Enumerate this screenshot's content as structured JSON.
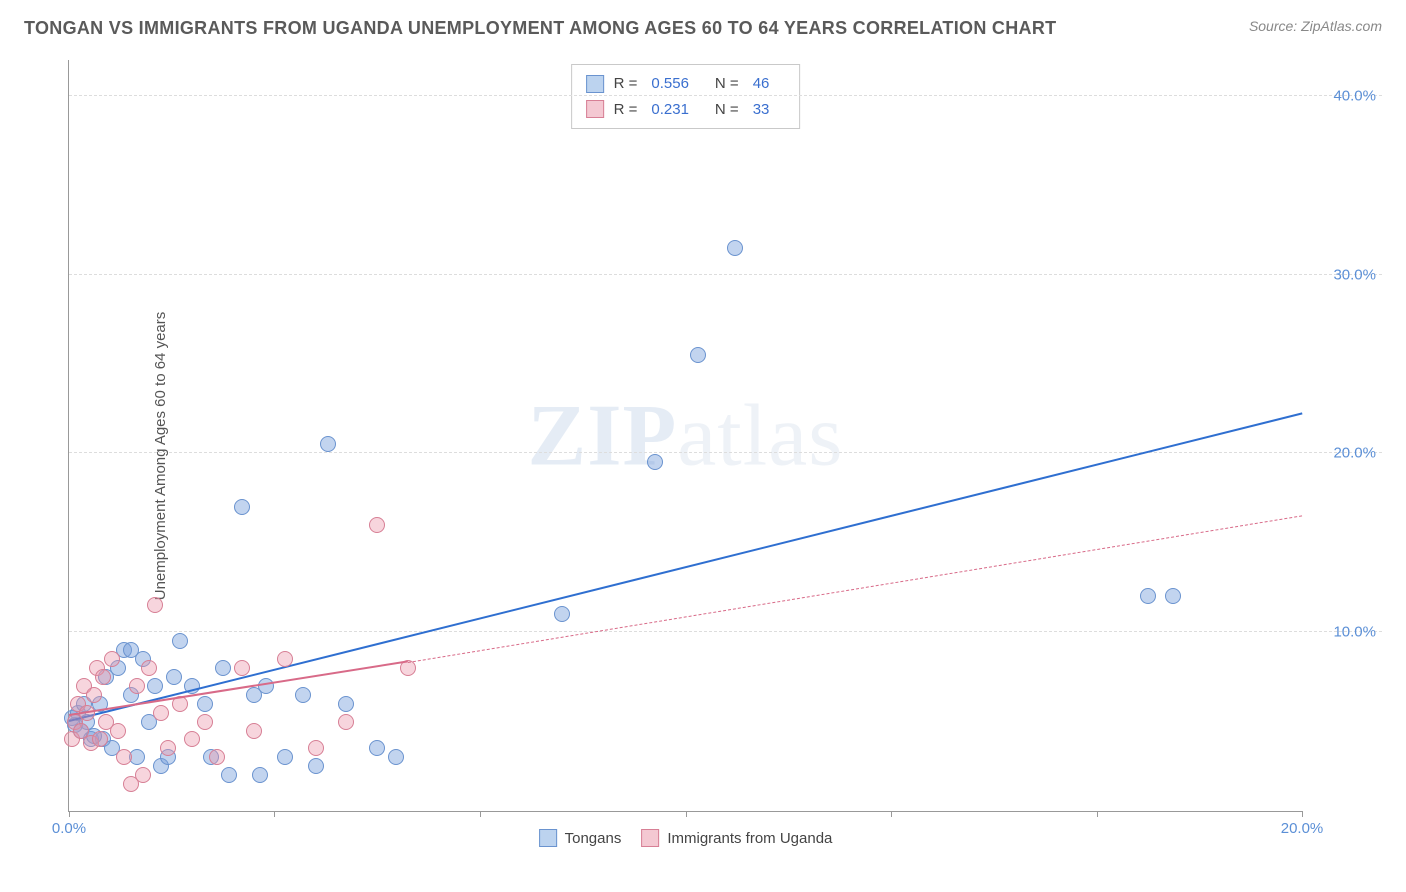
{
  "header": {
    "title": "TONGAN VS IMMIGRANTS FROM UGANDA UNEMPLOYMENT AMONG AGES 60 TO 64 YEARS CORRELATION CHART",
    "source": "Source: ZipAtlas.com"
  },
  "watermark": {
    "bold": "ZIP",
    "rest": "atlas"
  },
  "chart": {
    "type": "scatter",
    "ylabel": "Unemployment Among Ages 60 to 64 years",
    "xlim": [
      0,
      20
    ],
    "ylim": [
      0,
      42
    ],
    "xtick_positions": [
      0,
      3.33,
      6.67,
      10,
      13.33,
      16.67,
      20
    ],
    "xtick_labels": [
      "0.0%",
      "",
      "",
      "",
      "",
      "",
      "20.0%"
    ],
    "ytick_positions": [
      10,
      20,
      30,
      40
    ],
    "ytick_labels": [
      "10.0%",
      "20.0%",
      "30.0%",
      "40.0%"
    ],
    "grid_color": "#dddddd",
    "axis_color": "#999999",
    "background_color": "#ffffff",
    "marker_radius": 8,
    "marker_border_width": 1.2,
    "series": [
      {
        "name": "Tongans",
        "fill_color": "rgba(120,160,220,0.45)",
        "stroke_color": "#6a93cf",
        "swatch_fill": "#bcd3ef",
        "swatch_border": "#6a93cf",
        "R": "0.556",
        "N": "46",
        "trend": {
          "x1": 0,
          "y1": 5.0,
          "x2": 20,
          "y2": 22.2,
          "color": "#2f6fd0",
          "width": 2.5,
          "dash": "solid"
        },
        "points": [
          [
            0.05,
            5.2
          ],
          [
            0.1,
            4.8
          ],
          [
            0.15,
            5.5
          ],
          [
            0.2,
            4.5
          ],
          [
            0.25,
            6.0
          ],
          [
            0.3,
            5.0
          ],
          [
            0.35,
            4.0
          ],
          [
            0.5,
            6.0
          ],
          [
            0.55,
            4.0
          ],
          [
            0.6,
            7.5
          ],
          [
            0.7,
            3.5
          ],
          [
            0.8,
            8.0
          ],
          [
            0.9,
            9.0
          ],
          [
            1.0,
            6.5
          ],
          [
            1.1,
            3.0
          ],
          [
            1.2,
            8.5
          ],
          [
            1.3,
            5.0
          ],
          [
            1.4,
            7.0
          ],
          [
            1.5,
            2.5
          ],
          [
            1.6,
            3.0
          ],
          [
            1.7,
            7.5
          ],
          [
            1.8,
            9.5
          ],
          [
            2.0,
            7.0
          ],
          [
            2.2,
            6.0
          ],
          [
            2.3,
            3.0
          ],
          [
            2.5,
            8.0
          ],
          [
            2.6,
            2.0
          ],
          [
            2.8,
            17.0
          ],
          [
            3.0,
            6.5
          ],
          [
            3.1,
            2.0
          ],
          [
            3.2,
            7.0
          ],
          [
            3.5,
            3.0
          ],
          [
            3.8,
            6.5
          ],
          [
            4.0,
            2.5
          ],
          [
            4.2,
            20.5
          ],
          [
            4.5,
            6.0
          ],
          [
            5.0,
            3.5
          ],
          [
            5.3,
            3.0
          ],
          [
            8.0,
            11.0
          ],
          [
            9.5,
            19.5
          ],
          [
            10.2,
            25.5
          ],
          [
            10.8,
            31.5
          ],
          [
            17.5,
            12.0
          ],
          [
            17.9,
            12.0
          ],
          [
            1.0,
            9.0
          ],
          [
            0.4,
            4.2
          ]
        ]
      },
      {
        "name": "Immigrants from Uganda",
        "fill_color": "rgba(235,150,170,0.40)",
        "stroke_color": "#d77f95",
        "swatch_fill": "#f4c8d2",
        "swatch_border": "#d77f95",
        "R": "0.231",
        "N": "33",
        "trend": {
          "x1": 0,
          "y1": 5.3,
          "x2": 5.5,
          "y2": 8.3,
          "color": "#d86a88",
          "width": 2,
          "dash": "solid",
          "ext_x2": 20,
          "ext_y2": 16.5,
          "ext_dash": "dashed"
        },
        "points": [
          [
            0.05,
            4.0
          ],
          [
            0.1,
            5.0
          ],
          [
            0.15,
            6.0
          ],
          [
            0.2,
            4.5
          ],
          [
            0.25,
            7.0
          ],
          [
            0.3,
            5.5
          ],
          [
            0.35,
            3.8
          ],
          [
            0.4,
            6.5
          ],
          [
            0.45,
            8.0
          ],
          [
            0.5,
            4.0
          ],
          [
            0.55,
            7.5
          ],
          [
            0.6,
            5.0
          ],
          [
            0.7,
            8.5
          ],
          [
            0.8,
            4.5
          ],
          [
            0.9,
            3.0
          ],
          [
            1.0,
            1.5
          ],
          [
            1.1,
            7.0
          ],
          [
            1.2,
            2.0
          ],
          [
            1.3,
            8.0
          ],
          [
            1.4,
            11.5
          ],
          [
            1.5,
            5.5
          ],
          [
            1.6,
            3.5
          ],
          [
            1.8,
            6.0
          ],
          [
            2.0,
            4.0
          ],
          [
            2.2,
            5.0
          ],
          [
            2.4,
            3.0
          ],
          [
            2.8,
            8.0
          ],
          [
            3.0,
            4.5
          ],
          [
            3.5,
            8.5
          ],
          [
            4.0,
            3.5
          ],
          [
            4.5,
            5.0
          ],
          [
            5.0,
            16.0
          ],
          [
            5.5,
            8.0
          ]
        ]
      }
    ],
    "legend_top": {
      "R_label": "R =",
      "N_label": "N ="
    },
    "legend_bottom_labels": [
      "Tongans",
      "Immigrants from Uganda"
    ]
  }
}
